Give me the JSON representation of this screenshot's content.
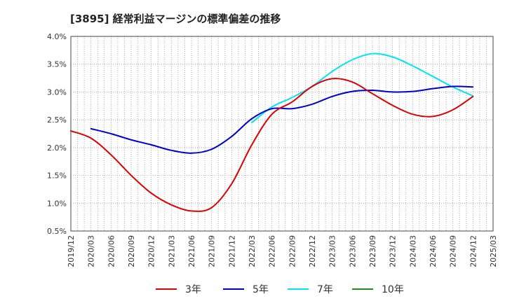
{
  "chart_data": {
    "type": "line",
    "title": "[3895]  経常利益マージンの標準偏差の推移",
    "xlabel": "",
    "ylabel": "",
    "x_ticks": [
      "2019/12",
      "2020/03",
      "2020/06",
      "2020/09",
      "2020/12",
      "2021/03",
      "2021/06",
      "2021/09",
      "2021/12",
      "2022/03",
      "2022/06",
      "2022/09",
      "2022/12",
      "2023/03",
      "2023/06",
      "2023/09",
      "2023/12",
      "2024/03",
      "2024/06",
      "2024/09",
      "2024/12",
      "2025/03"
    ],
    "y_ticks": [
      "0.5%",
      "1.0%",
      "1.5%",
      "2.0%",
      "2.5%",
      "3.0%",
      "3.5%",
      "4.0%"
    ],
    "ylim": [
      0.5,
      4.0
    ],
    "grid": true,
    "legend_position": "bottom",
    "series": [
      {
        "name": "3年",
        "color": "#dd0000",
        "x": [
          "2019/12",
          "2020/03",
          "2020/06",
          "2020/09",
          "2020/12",
          "2021/03",
          "2021/06",
          "2021/09",
          "2021/12",
          "2022/03",
          "2022/06",
          "2022/09",
          "2022/12",
          "2023/03",
          "2023/06",
          "2023/09",
          "2023/12",
          "2024/03",
          "2024/06",
          "2024/09",
          "2024/12"
        ],
        "values": [
          2.3,
          2.17,
          1.87,
          1.5,
          1.18,
          0.97,
          0.86,
          0.92,
          1.35,
          2.05,
          2.6,
          2.82,
          3.1,
          3.24,
          3.18,
          2.97,
          2.76,
          2.6,
          2.56,
          2.68,
          2.92
        ]
      },
      {
        "name": "5年",
        "color": "#0000cc",
        "x": [
          "2020/03",
          "2020/06",
          "2020/09",
          "2020/12",
          "2021/03",
          "2021/06",
          "2021/09",
          "2021/12",
          "2022/03",
          "2022/06",
          "2022/09",
          "2022/12",
          "2023/03",
          "2023/06",
          "2023/09",
          "2023/12",
          "2024/03",
          "2024/06",
          "2024/09",
          "2024/12"
        ],
        "values": [
          2.34,
          2.25,
          2.14,
          2.05,
          1.95,
          1.9,
          1.97,
          2.2,
          2.52,
          2.7,
          2.7,
          2.78,
          2.92,
          3.01,
          3.03,
          3.0,
          3.01,
          3.06,
          3.1,
          3.09
        ]
      },
      {
        "name": "7年",
        "color": "#00e5ee",
        "x": [
          "2022/03",
          "2022/06",
          "2022/09",
          "2022/12",
          "2023/03",
          "2023/06",
          "2023/09",
          "2023/12",
          "2024/03",
          "2024/06",
          "2024/09",
          "2024/12"
        ],
        "values": [
          2.45,
          2.73,
          2.9,
          3.1,
          3.37,
          3.58,
          3.69,
          3.63,
          3.47,
          3.28,
          3.09,
          2.93
        ]
      },
      {
        "name": "10年",
        "color": "#228b22",
        "x": [],
        "values": []
      }
    ]
  }
}
